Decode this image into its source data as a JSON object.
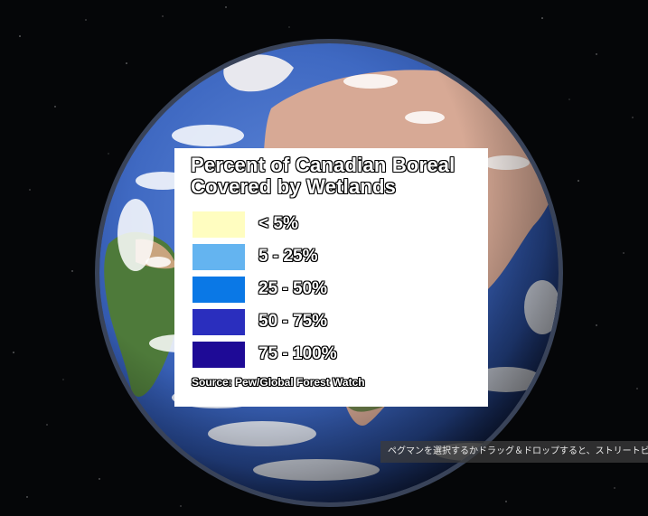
{
  "legend": {
    "title_line1": "Percent of Canadian Boreal",
    "title_line2": "Covered by Wetlands",
    "items": [
      {
        "label": "< 5%",
        "color": "#FFFDC0"
      },
      {
        "label": "5 - 25%",
        "color": "#64B4F0"
      },
      {
        "label": "25 - 50%",
        "color": "#0A78E6"
      },
      {
        "label": "50 - 75%",
        "color": "#2A2EBE"
      },
      {
        "label": "75 - 100%",
        "color": "#1E0A96"
      }
    ],
    "source": "Source: Pew/Global Forest Watch"
  },
  "tooltip": {
    "text": "ペグマンを選択するかドラッグ＆ドロップすると、ストリートビ"
  },
  "globe": {
    "ocean_color": "#3F69C2",
    "land_color": "#D7A995"
  }
}
